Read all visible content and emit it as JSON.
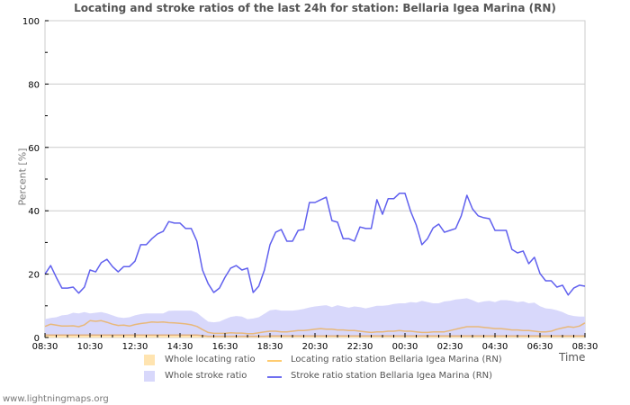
{
  "title": "Locating and stroke ratios of the last 24h for station: Bellaria Igea Marina (RN)",
  "footer": "www.lightningmaps.org",
  "colors": {
    "whole_locating": "#ffe4b0",
    "whole_stroke": "#d8d8fb",
    "locating_line": "#e8b87a",
    "stroke_line": "#6060ee",
    "grid": "#cccccc"
  },
  "legend": {
    "whole_locating": "Whole locating ratio",
    "whole_stroke": "Whole stroke ratio",
    "locating_station": "Locating ratio station Bellaria Igea Marina (RN)",
    "stroke_station": "Stroke ratio station Bellaria Igea Marina (RN)"
  },
  "chart_data": {
    "type": "line",
    "title": "Locating and stroke ratios of the last 24h for station: Bellaria Igea Marina (RN)",
    "xlabel": "Time",
    "ylabel": "Percent   [%]",
    "ylim": [
      0,
      100
    ],
    "yticks": [
      0,
      20,
      40,
      60,
      80,
      100
    ],
    "xticks": [
      "08:30",
      "10:30",
      "12:30",
      "14:30",
      "16:30",
      "18:30",
      "20:30",
      "22:30",
      "00:30",
      "02:30",
      "04:30",
      "06:30",
      "08:30"
    ],
    "grid": true,
    "legend_position": "bottom",
    "x_interval_minutes": 15,
    "series": [
      {
        "name": "Stroke ratio station Bellaria Igea Marina (RN)",
        "type": "line",
        "values": [
          20,
          22.7,
          19,
          15.6,
          15.6,
          15.9,
          14,
          15.9,
          21.3,
          20.7,
          23.6,
          24.7,
          22.4,
          20.7,
          22.4,
          22.4,
          24.1,
          29.3,
          29.3,
          31.2,
          32.7,
          33.5,
          36.6,
          36.1,
          36.1,
          34.4,
          34.4,
          30.4,
          21.3,
          17,
          14.2,
          15.6,
          19,
          21.9,
          22.7,
          21.3,
          21.9,
          14.2,
          16.2,
          21.3,
          29.3,
          33.2,
          34.1,
          30.4,
          30.4,
          33.8,
          34.1,
          42.6,
          42.6,
          43.5,
          44.3,
          36.9,
          36.4,
          31.2,
          31.2,
          30.4,
          34.9,
          34.4,
          34.4,
          43.5,
          38.9,
          43.8,
          43.8,
          45.5,
          45.5,
          39.8,
          35.5,
          29.3,
          31.2,
          34.6,
          35.8,
          33.2,
          33.8,
          34.4,
          38.4,
          44.9,
          40.6,
          38.4,
          37.8,
          37.5,
          33.8,
          33.8,
          33.8,
          27.8,
          26.7,
          27.3,
          23.3,
          25.3,
          20.2,
          17.9,
          17.9,
          15.9,
          16.5,
          13.4,
          15.6,
          16.5,
          16.2
        ]
      },
      {
        "name": "Whole stroke ratio",
        "type": "area",
        "values": [
          5.8,
          6.2,
          6.4,
          7,
          7.2,
          7.8,
          7.6,
          8,
          7.6,
          7.8,
          8,
          7.6,
          7,
          6.4,
          6.2,
          6.4,
          7,
          7.4,
          7.6,
          7.6,
          7.6,
          7.6,
          8.4,
          8.5,
          8.5,
          8.5,
          8.5,
          7.8,
          6.4,
          5,
          4.8,
          5,
          5.8,
          6.5,
          6.8,
          6.6,
          5.8,
          6,
          6.4,
          7.5,
          8.6,
          8.8,
          8.5,
          8.5,
          8.5,
          8.7,
          9,
          9.5,
          9.8,
          10,
          10.2,
          9.6,
          10.2,
          9.8,
          9.4,
          9.8,
          9.6,
          9.2,
          9.6,
          10,
          10,
          10.2,
          10.6,
          10.8,
          10.8,
          11.2,
          11,
          11.6,
          11.2,
          10.8,
          10.8,
          11.4,
          11.6,
          12,
          12.2,
          12.4,
          11.8,
          11,
          11.4,
          11.6,
          11.2,
          11.8,
          11.8,
          11.6,
          11.2,
          11.4,
          10.8,
          11,
          9.9,
          9.2,
          9,
          8.6,
          8,
          7.2,
          6.8,
          6.6,
          6.6
        ]
      },
      {
        "name": "Locating ratio station Bellaria Igea Marina (RN)",
        "type": "line",
        "values": [
          3.5,
          4.2,
          3.9,
          3.6,
          3.6,
          3.7,
          3.4,
          4,
          5.3,
          5.1,
          5.3,
          4.8,
          4.2,
          3.8,
          3.9,
          3.6,
          4.1,
          4.4,
          4.6,
          4.9,
          4.8,
          4.9,
          4.7,
          4.6,
          4.5,
          4.3,
          4,
          3.5,
          2.5,
          1.6,
          1.3,
          1.3,
          1.3,
          1.5,
          1.4,
          1.4,
          1.2,
          1.2,
          1.5,
          1.8,
          2,
          2,
          1.8,
          1.8,
          2,
          2.2,
          2.2,
          2.4,
          2.6,
          2.8,
          2.6,
          2.6,
          2.4,
          2.4,
          2.2,
          2.2,
          2,
          1.8,
          1.6,
          1.8,
          1.8,
          2,
          2,
          2.2,
          2,
          2,
          1.8,
          1.6,
          1.6,
          1.8,
          1.8,
          1.8,
          2.2,
          2.6,
          3,
          3.4,
          3.4,
          3.4,
          3.2,
          3,
          2.8,
          2.8,
          2.6,
          2.4,
          2.4,
          2.2,
          2.2,
          2,
          1.8,
          1.8,
          2,
          2.6,
          3,
          3.4,
          3.2,
          3.6,
          4.6
        ]
      },
      {
        "name": "Whole locating ratio",
        "type": "area",
        "values": [
          0.8,
          0.8,
          0.8,
          0.8,
          0.8,
          0.8,
          0.8,
          0.8,
          0.8,
          0.8,
          0.8,
          0.8,
          0.8,
          0.8,
          0.8,
          0.8,
          0.8,
          0.8,
          0.8,
          0.8,
          0.8,
          0.8,
          0.8,
          0.8,
          0.8,
          0.8,
          0.8,
          0.8,
          0.6,
          0.4,
          0.4,
          0.4,
          0.4,
          0.4,
          0.4,
          0.4,
          0.4,
          0.4,
          0.4,
          0.4,
          0.5,
          0.5,
          0.5,
          0.5,
          0.5,
          0.5,
          0.5,
          0.5,
          0.5,
          0.5,
          0.5,
          0.5,
          0.5,
          0.5,
          0.5,
          0.5,
          0.5,
          0.5,
          0.5,
          0.5,
          0.5,
          0.5,
          0.5,
          0.5,
          0.5,
          0.5,
          0.5,
          0.5,
          0.5,
          0.5,
          0.5,
          0.5,
          0.5,
          0.5,
          0.5,
          0.5,
          0.5,
          0.5,
          0.5,
          0.5,
          0.5,
          0.5,
          0.5,
          0.5,
          0.5,
          0.5,
          0.5,
          0.5,
          0.5,
          0.5,
          0.5,
          0.5,
          0.5,
          0.5,
          0.5,
          0.5,
          0.5
        ]
      }
    ]
  }
}
